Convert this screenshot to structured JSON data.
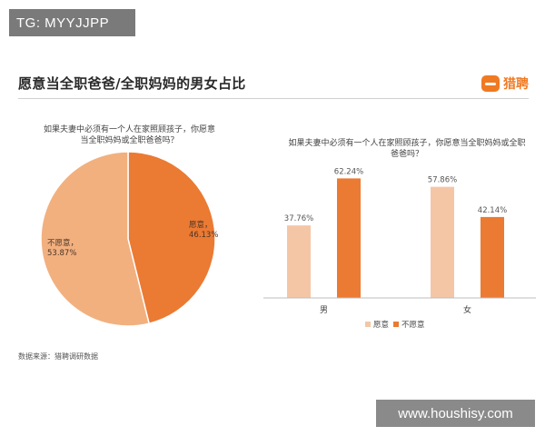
{
  "watermark_top": "TG: MYYJJPP",
  "watermark_bottom": "www.houshisy.com",
  "title": "愿意当全职爸爸/全职妈妈的男女占比",
  "brand": {
    "name": "猎聘",
    "color": "#f07a22"
  },
  "source": "数据来源：猎聘调研数据",
  "colors": {
    "willing": "#f4c6a6",
    "unwilling": "#eb7a33",
    "pie_willing": "#eb7a33",
    "pie_unwilling": "#f2b07f"
  },
  "chart_data": [
    {
      "type": "pie",
      "question_lines": [
        "如果夫妻中必须有一个人在家照顾孩子，你愿意",
        "当全职妈妈或全职爸爸吗？"
      ],
      "slices": [
        {
          "label": "愿意",
          "value": 46.13,
          "value_label": "46.13%"
        },
        {
          "label": "不愿意",
          "value": 53.87,
          "value_label": "53.87%"
        }
      ]
    },
    {
      "type": "bar",
      "question_lines": [
        "如果夫妻中必须有一个人在家照顾孩子，你愿意当全职妈妈或全职",
        "爸爸吗？"
      ],
      "categories": [
        "男",
        "女"
      ],
      "series": [
        {
          "name": "愿意",
          "values": [
            37.76,
            57.86
          ],
          "value_labels": [
            "37.76%",
            "57.86%"
          ]
        },
        {
          "name": "不愿意",
          "values": [
            62.24,
            42.14
          ],
          "value_labels": [
            "62.24%",
            "42.14%"
          ]
        }
      ],
      "ylim": [
        0,
        70
      ],
      "legend_position": "bottom"
    }
  ]
}
